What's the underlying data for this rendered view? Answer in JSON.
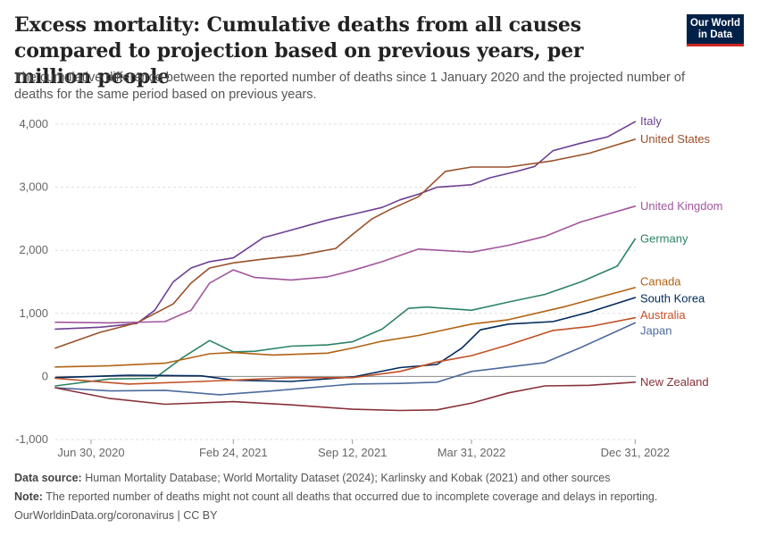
{
  "header": {
    "title": "Excess mortality: Cumulative deaths from all causes compared to projection based on previous years, per million people",
    "subtitle": "The cumulative difference between the reported number of deaths since 1 January 2020 and the projected number of deaths for the same period based on previous years.",
    "logo_line1": "Our World",
    "logo_line2": "in Data"
  },
  "footer": {
    "source_label": "Data source:",
    "source_text": "Human Mortality Database; World Mortality Dataset (2024); Karlinsky and Kobak (2021) and other sources",
    "note_label": "Note:",
    "note_text": "The reported number of deaths might not count all deaths that occurred due to incomplete coverage and delays in reporting.",
    "credit": "OurWorldinData.org/coronavirus | CC BY"
  },
  "chart_data": {
    "type": "line",
    "xlabel": "",
    "ylabel": "",
    "x_range": [
      "2020-05-01",
      "2023-01-01"
    ],
    "ylim": [
      -1000,
      4000
    ],
    "y_ticks": [
      -1000,
      0,
      1000,
      2000,
      3000,
      4000
    ],
    "y_tick_labels": [
      "-1,000",
      "0",
      "1,000",
      "2,000",
      "3,000",
      "4,000"
    ],
    "x_ticks": [
      "2020-06-30",
      "2021-02-24",
      "2021-09-12",
      "2022-03-31",
      "2022-12-31"
    ],
    "x_tick_labels": [
      "Jun 30, 2020",
      "Feb 24, 2021",
      "Sep 12, 2021",
      "Mar 31, 2022",
      "Dec 31, 2022"
    ],
    "grid": "horizontal dashed",
    "legend": "line-end labels, right",
    "series": [
      {
        "name": "Italy",
        "color": "#6d3e91",
        "x": [
          "2020-05-01",
          "2020-07-15",
          "2020-09-15",
          "2020-10-15",
          "2020-11-15",
          "2020-12-15",
          "2021-01-15",
          "2021-02-24",
          "2021-03-15",
          "2021-04-15",
          "2021-06-01",
          "2021-08-01",
          "2021-09-12",
          "2021-11-01",
          "2021-12-01",
          "2022-01-01",
          "2022-02-01",
          "2022-03-31",
          "2022-05-01",
          "2022-06-15",
          "2022-07-15",
          "2022-08-15",
          "2022-10-01",
          "2022-11-15",
          "2022-12-31"
        ],
        "y": [
          750,
          780,
          840,
          1050,
          1500,
          1720,
          1820,
          1880,
          2000,
          2200,
          2320,
          2480,
          2570,
          2680,
          2800,
          2890,
          3000,
          3040,
          3150,
          3250,
          3330,
          3580,
          3700,
          3800,
          4040
        ]
      },
      {
        "name": "United States",
        "color": "#a2559c",
        "x": [
          "2020-05-01",
          "2020-07-15",
          "2020-09-15",
          "2020-11-15",
          "2020-12-15",
          "2021-01-15",
          "2021-02-24",
          "2021-04-15",
          "2021-06-15",
          "2021-08-15",
          "2021-09-12",
          "2021-10-15",
          "2021-11-15",
          "2022-01-01",
          "2022-02-15",
          "2022-03-31",
          "2022-06-01",
          "2022-08-15",
          "2022-10-15",
          "2022-12-31"
        ],
        "y": [
          450,
          700,
          850,
          1150,
          1480,
          1720,
          1800,
          1860,
          1920,
          2030,
          2250,
          2500,
          2650,
          2850,
          3250,
          3320,
          3320,
          3420,
          3540,
          3760
        ]
      },
      {
        "name": "United Kingdom",
        "color": "#a2559c",
        "x": [
          "2020-05-01",
          "2020-08-01",
          "2020-11-01",
          "2020-12-15",
          "2021-01-15",
          "2021-02-24",
          "2021-04-01",
          "2021-06-01",
          "2021-08-01",
          "2021-09-12",
          "2021-11-01",
          "2022-01-01",
          "2022-03-31",
          "2022-06-01",
          "2022-08-01",
          "2022-10-01",
          "2022-12-31"
        ],
        "y": [
          860,
          850,
          870,
          1050,
          1480,
          1690,
          1570,
          1530,
          1580,
          1680,
          1820,
          2020,
          1970,
          2080,
          2220,
          2450,
          2700
        ]
      },
      {
        "name": "Germany",
        "color": "#286bbb",
        "x": [
          "2020-05-01",
          "2020-08-01",
          "2020-10-15",
          "2020-12-01",
          "2021-01-15",
          "2021-02-24",
          "2021-04-01",
          "2021-06-01",
          "2021-08-01",
          "2021-09-12",
          "2021-11-01",
          "2021-12-15",
          "2022-01-15",
          "2022-03-31",
          "2022-06-01",
          "2022-08-01",
          "2022-10-01",
          "2022-12-01",
          "2022-12-31"
        ],
        "y": [
          -150,
          -40,
          -30,
          300,
          570,
          390,
          400,
          480,
          500,
          550,
          750,
          1080,
          1100,
          1050,
          1180,
          1300,
          1500,
          1750,
          2180
        ]
      },
      {
        "name": "Canada",
        "color": "#883039",
        "x": [
          "2020-05-01",
          "2020-08-01",
          "2020-11-01",
          "2021-01-15",
          "2021-02-24",
          "2021-05-01",
          "2021-08-01",
          "2021-09-12",
          "2021-11-01",
          "2022-01-01",
          "2022-03-31",
          "2022-06-01",
          "2022-09-01",
          "2022-12-31"
        ],
        "y": [
          150,
          170,
          210,
          360,
          380,
          340,
          370,
          450,
          560,
          650,
          830,
          900,
          1100,
          1410
        ]
      },
      {
        "name": "South Korea",
        "color": "#cf0a66",
        "x": [
          "2020-05-01",
          "2020-09-01",
          "2021-01-01",
          "2021-02-24",
          "2021-06-01",
          "2021-09-12",
          "2021-12-01",
          "2022-02-01",
          "2022-03-15",
          "2022-04-15",
          "2022-06-01",
          "2022-08-15",
          "2022-10-15",
          "2022-12-31"
        ],
        "y": [
          -20,
          20,
          10,
          -60,
          -80,
          -10,
          140,
          190,
          450,
          740,
          830,
          870,
          1020,
          1250
        ]
      },
      {
        "name": "Australia",
        "color": "#00847e",
        "x": [
          "2020-05-01",
          "2020-09-01",
          "2021-01-01",
          "2021-06-01",
          "2021-09-12",
          "2021-12-01",
          "2022-02-01",
          "2022-03-31",
          "2022-06-01",
          "2022-08-15",
          "2022-10-15",
          "2022-12-31"
        ],
        "y": [
          -30,
          -120,
          -80,
          -20,
          -20,
          80,
          230,
          330,
          500,
          730,
          790,
          930
        ]
      },
      {
        "name": "Japan",
        "color": "#4c6a9c",
        "x": [
          "2020-05-01",
          "2020-08-01",
          "2020-11-01",
          "2021-02-01",
          "2021-05-01",
          "2021-09-12",
          "2021-12-01",
          "2022-02-01",
          "2022-03-31",
          "2022-06-01",
          "2022-08-01",
          "2022-10-01",
          "2022-12-31"
        ],
        "y": [
          -180,
          -230,
          -220,
          -290,
          -230,
          -120,
          -110,
          -90,
          80,
          150,
          220,
          460,
          850
        ]
      },
      {
        "name": "New Zealand",
        "color": "#883039",
        "x": [
          "2020-05-01",
          "2020-08-01",
          "2020-11-01",
          "2021-02-24",
          "2021-06-01",
          "2021-09-12",
          "2021-12-01",
          "2022-02-01",
          "2022-04-01",
          "2022-06-01",
          "2022-08-01",
          "2022-10-15",
          "2022-12-31"
        ],
        "y": [
          -180,
          -350,
          -440,
          -400,
          -450,
          -520,
          -540,
          -530,
          -420,
          -260,
          -150,
          -140,
          -90
        ]
      }
    ]
  },
  "series_colors": {
    "Italy": "#6d3e91",
    "United States": "#9a5129",
    "United Kingdom": "#a2559c",
    "Germany": "#2c8465",
    "Canada": "#b16214",
    "South Korea": "#00295b",
    "Australia": "#c15025",
    "Japan": "#4c6a9c",
    "New Zealand": "#883039"
  },
  "end_labels": [
    {
      "name": "Italy",
      "label_y": 4040
    },
    {
      "name": "United States",
      "label_y": 3760
    },
    {
      "name": "United Kingdom",
      "label_y": 2700
    },
    {
      "name": "Germany",
      "label_y": 2180
    },
    {
      "name": "Canada",
      "label_y": 1500
    },
    {
      "name": "South Korea",
      "label_y": 1230
    },
    {
      "name": "Australia",
      "label_y": 970
    },
    {
      "name": "Japan",
      "label_y": 720
    },
    {
      "name": "New Zealand",
      "label_y": -90
    }
  ]
}
